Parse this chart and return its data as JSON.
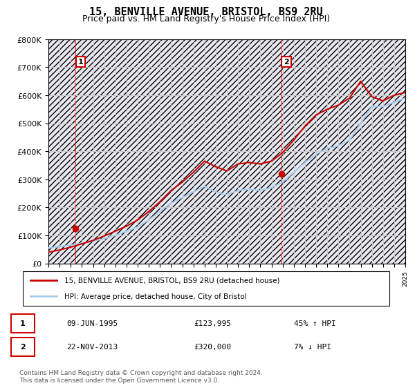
{
  "title": "15, BENVILLE AVENUE, BRISTOL, BS9 2RU",
  "subtitle": "Price paid vs. HM Land Registry's House Price Index (HPI)",
  "ylabel": "",
  "xlabel": "",
  "ylim": [
    0,
    800000
  ],
  "yticks": [
    0,
    100000,
    200000,
    300000,
    400000,
    500000,
    600000,
    700000,
    800000
  ],
  "ytick_labels": [
    "£0",
    "£100K",
    "£200K",
    "£300K",
    "£400K",
    "£500K",
    "£600K",
    "£700K",
    "£800K"
  ],
  "sale1_date": "09-JUN-1995",
  "sale1_price": 123995,
  "sale1_hpi": "45% ↑ HPI",
  "sale1_year": 1995.44,
  "sale2_date": "22-NOV-2013",
  "sale2_price": 320000,
  "sale2_hpi": "7% ↓ HPI",
  "sale2_year": 2013.89,
  "legend_label1": "15, BENVILLE AVENUE, BRISTOL, BS9 2RU (detached house)",
  "legend_label2": "HPI: Average price, detached house, City of Bristol",
  "footnote": "Contains HM Land Registry data © Crown copyright and database right 2024.\nThis data is licensed under the Open Government Licence v3.0.",
  "price_line_color": "#cc0000",
  "hpi_line_color": "#aaccee",
  "dashed_line_color": "#ff4444",
  "background_hatch_color": "#ddddee",
  "grid_color": "#cccccc",
  "title_fontsize": 11,
  "subtitle_fontsize": 9,
  "axis_fontsize": 8,
  "hpi_years": [
    1993,
    1994,
    1995,
    1996,
    1997,
    1998,
    1999,
    2000,
    2001,
    2002,
    2003,
    2004,
    2005,
    2006,
    2007,
    2008,
    2009,
    2010,
    2011,
    2012,
    2013,
    2014,
    2015,
    2016,
    2017,
    2018,
    2019,
    2020,
    2021,
    2022,
    2023,
    2024,
    2025
  ],
  "hpi_values": [
    55000,
    60000,
    65000,
    72000,
    80000,
    88000,
    100000,
    115000,
    130000,
    155000,
    185000,
    215000,
    235000,
    255000,
    275000,
    255000,
    245000,
    260000,
    265000,
    260000,
    270000,
    290000,
    325000,
    360000,
    390000,
    410000,
    420000,
    440000,
    500000,
    560000,
    560000,
    575000,
    590000
  ],
  "price_years": [
    1993,
    1994,
    1995,
    1996,
    1997,
    1998,
    1999,
    2000,
    2001,
    2002,
    2003,
    2004,
    2005,
    2006,
    2007,
    2008,
    2009,
    2010,
    2011,
    2012,
    2013,
    2014,
    2015,
    2016,
    2017,
    2018,
    2019,
    2020,
    2021,
    2022,
    2023,
    2024,
    2025
  ],
  "price_values": [
    40000,
    48000,
    58000,
    70000,
    82000,
    98000,
    115000,
    133000,
    155000,
    185000,
    220000,
    260000,
    290000,
    325000,
    365000,
    345000,
    330000,
    355000,
    360000,
    355000,
    365000,
    395000,
    440000,
    490000,
    530000,
    550000,
    565000,
    590000,
    650000,
    595000,
    580000,
    600000,
    610000
  ]
}
